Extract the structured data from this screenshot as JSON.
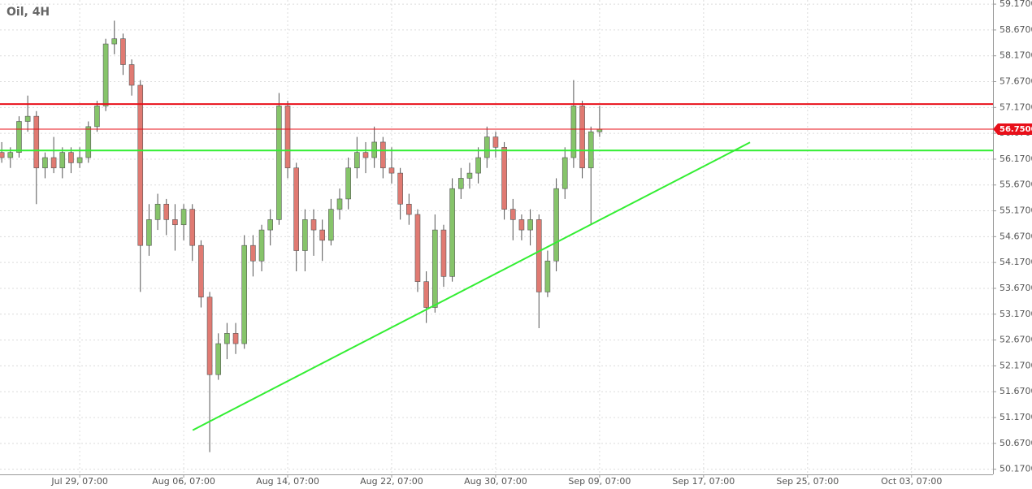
{
  "chart_data": {
    "type": "candlestick",
    "title": "Oil, 4H",
    "x": [
      -4.5,
      -4,
      -3.5,
      -3,
      -2.5,
      -2,
      -1.5,
      -1,
      -0.5,
      0,
      0.5,
      1,
      1.5,
      2,
      2.5,
      3,
      3.5,
      4,
      4.5,
      5,
      5.5,
      6,
      6.5,
      7,
      7.5,
      8,
      8.5,
      9,
      9.5,
      10,
      10.5,
      11,
      11.5,
      12,
      12.5,
      13,
      13.5,
      14,
      14.5,
      15,
      15.5,
      16,
      16.5,
      17,
      17.5,
      18,
      18.5,
      19,
      19.5,
      20,
      20.5,
      21,
      21.5,
      22,
      22.5,
      23,
      23.5,
      24,
      24.5,
      25,
      25.5,
      26,
      26.5,
      27,
      27.5,
      28,
      28.5,
      29,
      29.5,
      30
    ],
    "open": [
      56.3,
      56.2,
      56.3,
      56.9,
      57.0,
      56.0,
      56.2,
      56.0,
      56.3,
      56.1,
      56.2,
      56.8,
      57.2,
      58.4,
      58.5,
      58.0,
      57.6,
      54.5,
      55.0,
      55.3,
      55.0,
      54.9,
      55.2,
      54.5,
      53.5,
      52.0,
      52.6,
      52.8,
      52.6,
      54.5,
      54.2,
      54.8,
      55.0,
      57.2,
      56.0,
      54.4,
      55.0,
      54.8,
      54.6,
      55.2,
      55.4,
      56.0,
      56.3,
      56.2,
      56.5,
      56.0,
      55.9,
      55.3,
      55.1,
      53.8,
      53.3,
      54.8,
      53.9,
      55.6,
      55.8,
      55.9,
      56.2,
      56.6,
      56.4,
      55.2,
      55.0,
      54.8,
      55.0,
      53.6,
      54.2,
      55.6,
      56.2,
      57.2,
      56.0,
      56.7
    ],
    "high": [
      56.5,
      56.4,
      57.0,
      57.4,
      57.1,
      56.3,
      56.6,
      56.4,
      56.4,
      56.4,
      56.9,
      57.3,
      58.5,
      58.85,
      58.6,
      58.1,
      57.7,
      55.3,
      55.5,
      55.4,
      55.3,
      55.3,
      55.3,
      54.6,
      53.6,
      52.8,
      53.0,
      53.0,
      54.7,
      54.7,
      54.9,
      55.2,
      57.45,
      57.3,
      56.1,
      55.2,
      55.2,
      55.0,
      55.4,
      55.6,
      56.2,
      56.6,
      56.5,
      56.8,
      56.6,
      56.4,
      56.0,
      55.5,
      55.2,
      54.0,
      55.1,
      54.9,
      55.8,
      56.0,
      56.1,
      56.4,
      56.8,
      56.7,
      56.5,
      55.4,
      55.1,
      55.2,
      55.1,
      54.4,
      55.8,
      56.4,
      57.7,
      57.3,
      56.8,
      57.2
    ],
    "low": [
      56.1,
      56.0,
      56.2,
      56.7,
      55.3,
      55.8,
      55.9,
      55.8,
      55.9,
      56.0,
      56.1,
      56.7,
      57.1,
      58.2,
      57.8,
      57.4,
      53.6,
      54.3,
      54.8,
      54.7,
      54.4,
      54.6,
      54.2,
      53.3,
      50.5,
      51.9,
      52.3,
      52.4,
      52.5,
      53.9,
      54.0,
      54.5,
      54.9,
      55.8,
      54.0,
      54.0,
      54.3,
      54.2,
      54.5,
      55.0,
      55.2,
      55.8,
      55.9,
      56.0,
      55.8,
      55.7,
      55.0,
      54.9,
      53.6,
      53.0,
      53.2,
      53.7,
      53.8,
      55.4,
      55.6,
      55.7,
      56.0,
      56.2,
      55.0,
      54.6,
      54.6,
      54.5,
      52.9,
      53.5,
      54.0,
      55.4,
      56.0,
      55.8,
      54.9,
      56.6
    ],
    "close": [
      56.2,
      56.3,
      56.9,
      57.0,
      56.0,
      56.2,
      56.0,
      56.3,
      56.1,
      56.2,
      56.8,
      57.2,
      58.4,
      58.5,
      58.0,
      57.6,
      54.5,
      55.0,
      55.3,
      55.0,
      54.9,
      55.2,
      54.5,
      53.5,
      52.0,
      52.6,
      52.8,
      52.6,
      54.5,
      54.2,
      54.8,
      55.0,
      57.2,
      56.0,
      54.4,
      55.0,
      54.8,
      54.6,
      55.2,
      55.4,
      56.0,
      56.3,
      56.2,
      56.5,
      56.0,
      55.9,
      55.3,
      55.1,
      53.8,
      53.3,
      54.8,
      53.9,
      55.6,
      55.8,
      55.9,
      56.2,
      56.6,
      56.4,
      55.2,
      55.0,
      54.8,
      55.0,
      53.6,
      54.2,
      55.6,
      56.2,
      57.2,
      56.0,
      56.7,
      56.75
    ],
    "up_color": "#86c46a",
    "down_color": "#e07a72",
    "xlim": [
      -4.6,
      52.7
    ],
    "xticks": [
      {
        "value": 0,
        "label": "Jul 29, 07:00"
      },
      {
        "value": 6,
        "label": "Aug 06, 07:00"
      },
      {
        "value": 12,
        "label": "Aug 14, 07:00"
      },
      {
        "value": 18,
        "label": "Aug 22, 07:00"
      },
      {
        "value": 24,
        "label": "Aug 30, 07:00"
      },
      {
        "value": 30,
        "label": "Sep 09, 07:00"
      },
      {
        "value": 36,
        "label": "Sep 17, 07:00"
      },
      {
        "value": 42,
        "label": "Sep 25, 07:00"
      },
      {
        "value": 48,
        "label": "Oct 03, 07:00"
      }
    ],
    "ylim": [
      50.07,
      59.25
    ],
    "yticks": [
      {
        "value": 50.17,
        "label": "50.1700"
      },
      {
        "value": 50.67,
        "label": "50.6700"
      },
      {
        "value": 51.17,
        "label": "51.1700"
      },
      {
        "value": 51.67,
        "label": "51.6700"
      },
      {
        "value": 52.17,
        "label": "52.1700"
      },
      {
        "value": 52.67,
        "label": "52.6700"
      },
      {
        "value": 53.17,
        "label": "53.1700"
      },
      {
        "value": 53.67,
        "label": "53.6700"
      },
      {
        "value": 54.17,
        "label": "54.1700"
      },
      {
        "value": 54.67,
        "label": "54.6700"
      },
      {
        "value": 55.17,
        "label": "55.1700"
      },
      {
        "value": 55.67,
        "label": "55.6700"
      },
      {
        "value": 56.17,
        "label": "56.1700"
      },
      {
        "value": 56.67,
        "label": "56.6700"
      },
      {
        "value": 57.17,
        "label": "57.1700"
      },
      {
        "value": 57.67,
        "label": "57.6700"
      },
      {
        "value": 58.17,
        "label": "58.1700"
      },
      {
        "value": 58.67,
        "label": "58.6700"
      },
      {
        "value": 59.17,
        "label": "59.1700"
      }
    ],
    "grid": true,
    "last_price": {
      "value": 56.75,
      "label": "56.7500",
      "color": "#e8101a"
    },
    "levels": [
      {
        "value": 57.235,
        "color": "#e8101a"
      },
      {
        "value": 56.338,
        "color": "#33ee33"
      }
    ],
    "trendlines": [
      {
        "x": [
          6.52,
          38.68
        ],
        "y": [
          50.925,
          56.495
        ],
        "color": "#33ee33"
      }
    ]
  }
}
